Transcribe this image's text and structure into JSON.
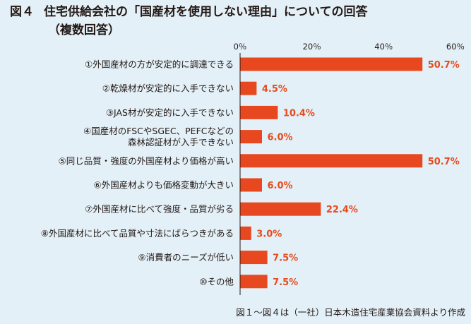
{
  "title": {
    "fig": "図４",
    "text": "住宅供給会社の「国産材を使用しない理由」についての回答",
    "sub": "（複数回答）"
  },
  "source": "図１～図４は（一社）日本木造住宅産業協会資料より作成",
  "colors": {
    "bar": "#e8481f",
    "value": "#e64b1e",
    "background": "#e3f0f7",
    "axis": "#231815"
  },
  "chart_data": {
    "type": "bar",
    "orientation": "horizontal",
    "title": "住宅供給会社の「国産材を使用しない理由」についての回答",
    "xlabel": "",
    "ylabel": "",
    "xlim": [
      0,
      60
    ],
    "ticks": [
      0,
      20,
      40,
      60
    ],
    "tick_labels": [
      "0％",
      "20％",
      "40％",
      "60％"
    ],
    "grid": false,
    "categories": [
      [
        "①外国産材の方が安定的に調達できる"
      ],
      [
        "②乾燥材が安定的に入手できない"
      ],
      [
        "③JAS材が安定的に入手できない"
      ],
      [
        "④国産材のFSCやSGEC、PEFCなどの",
        "森林認証材が入手できない"
      ],
      [
        "⑤同じ品質・強度の外国産材より価格が高い"
      ],
      [
        "⑥外国産材よりも価格変動が大きい"
      ],
      [
        "⑦外国産材に比べて強度・品質が劣る"
      ],
      [
        "⑧外国産材に比べて品質や寸法にばらつきがある"
      ],
      [
        "⑨消費者のニーズが低い"
      ],
      [
        "⑩その他"
      ]
    ],
    "values": [
      50.7,
      4.5,
      10.4,
      6.0,
      50.7,
      6.0,
      22.4,
      3.0,
      7.5,
      7.5
    ],
    "value_labels": [
      "50.7%",
      "4.5%",
      "10.4%",
      "6.0%",
      "50.7%",
      "6.0%",
      "22.4%",
      "3.0%",
      "7.5%",
      "7.5%"
    ]
  }
}
